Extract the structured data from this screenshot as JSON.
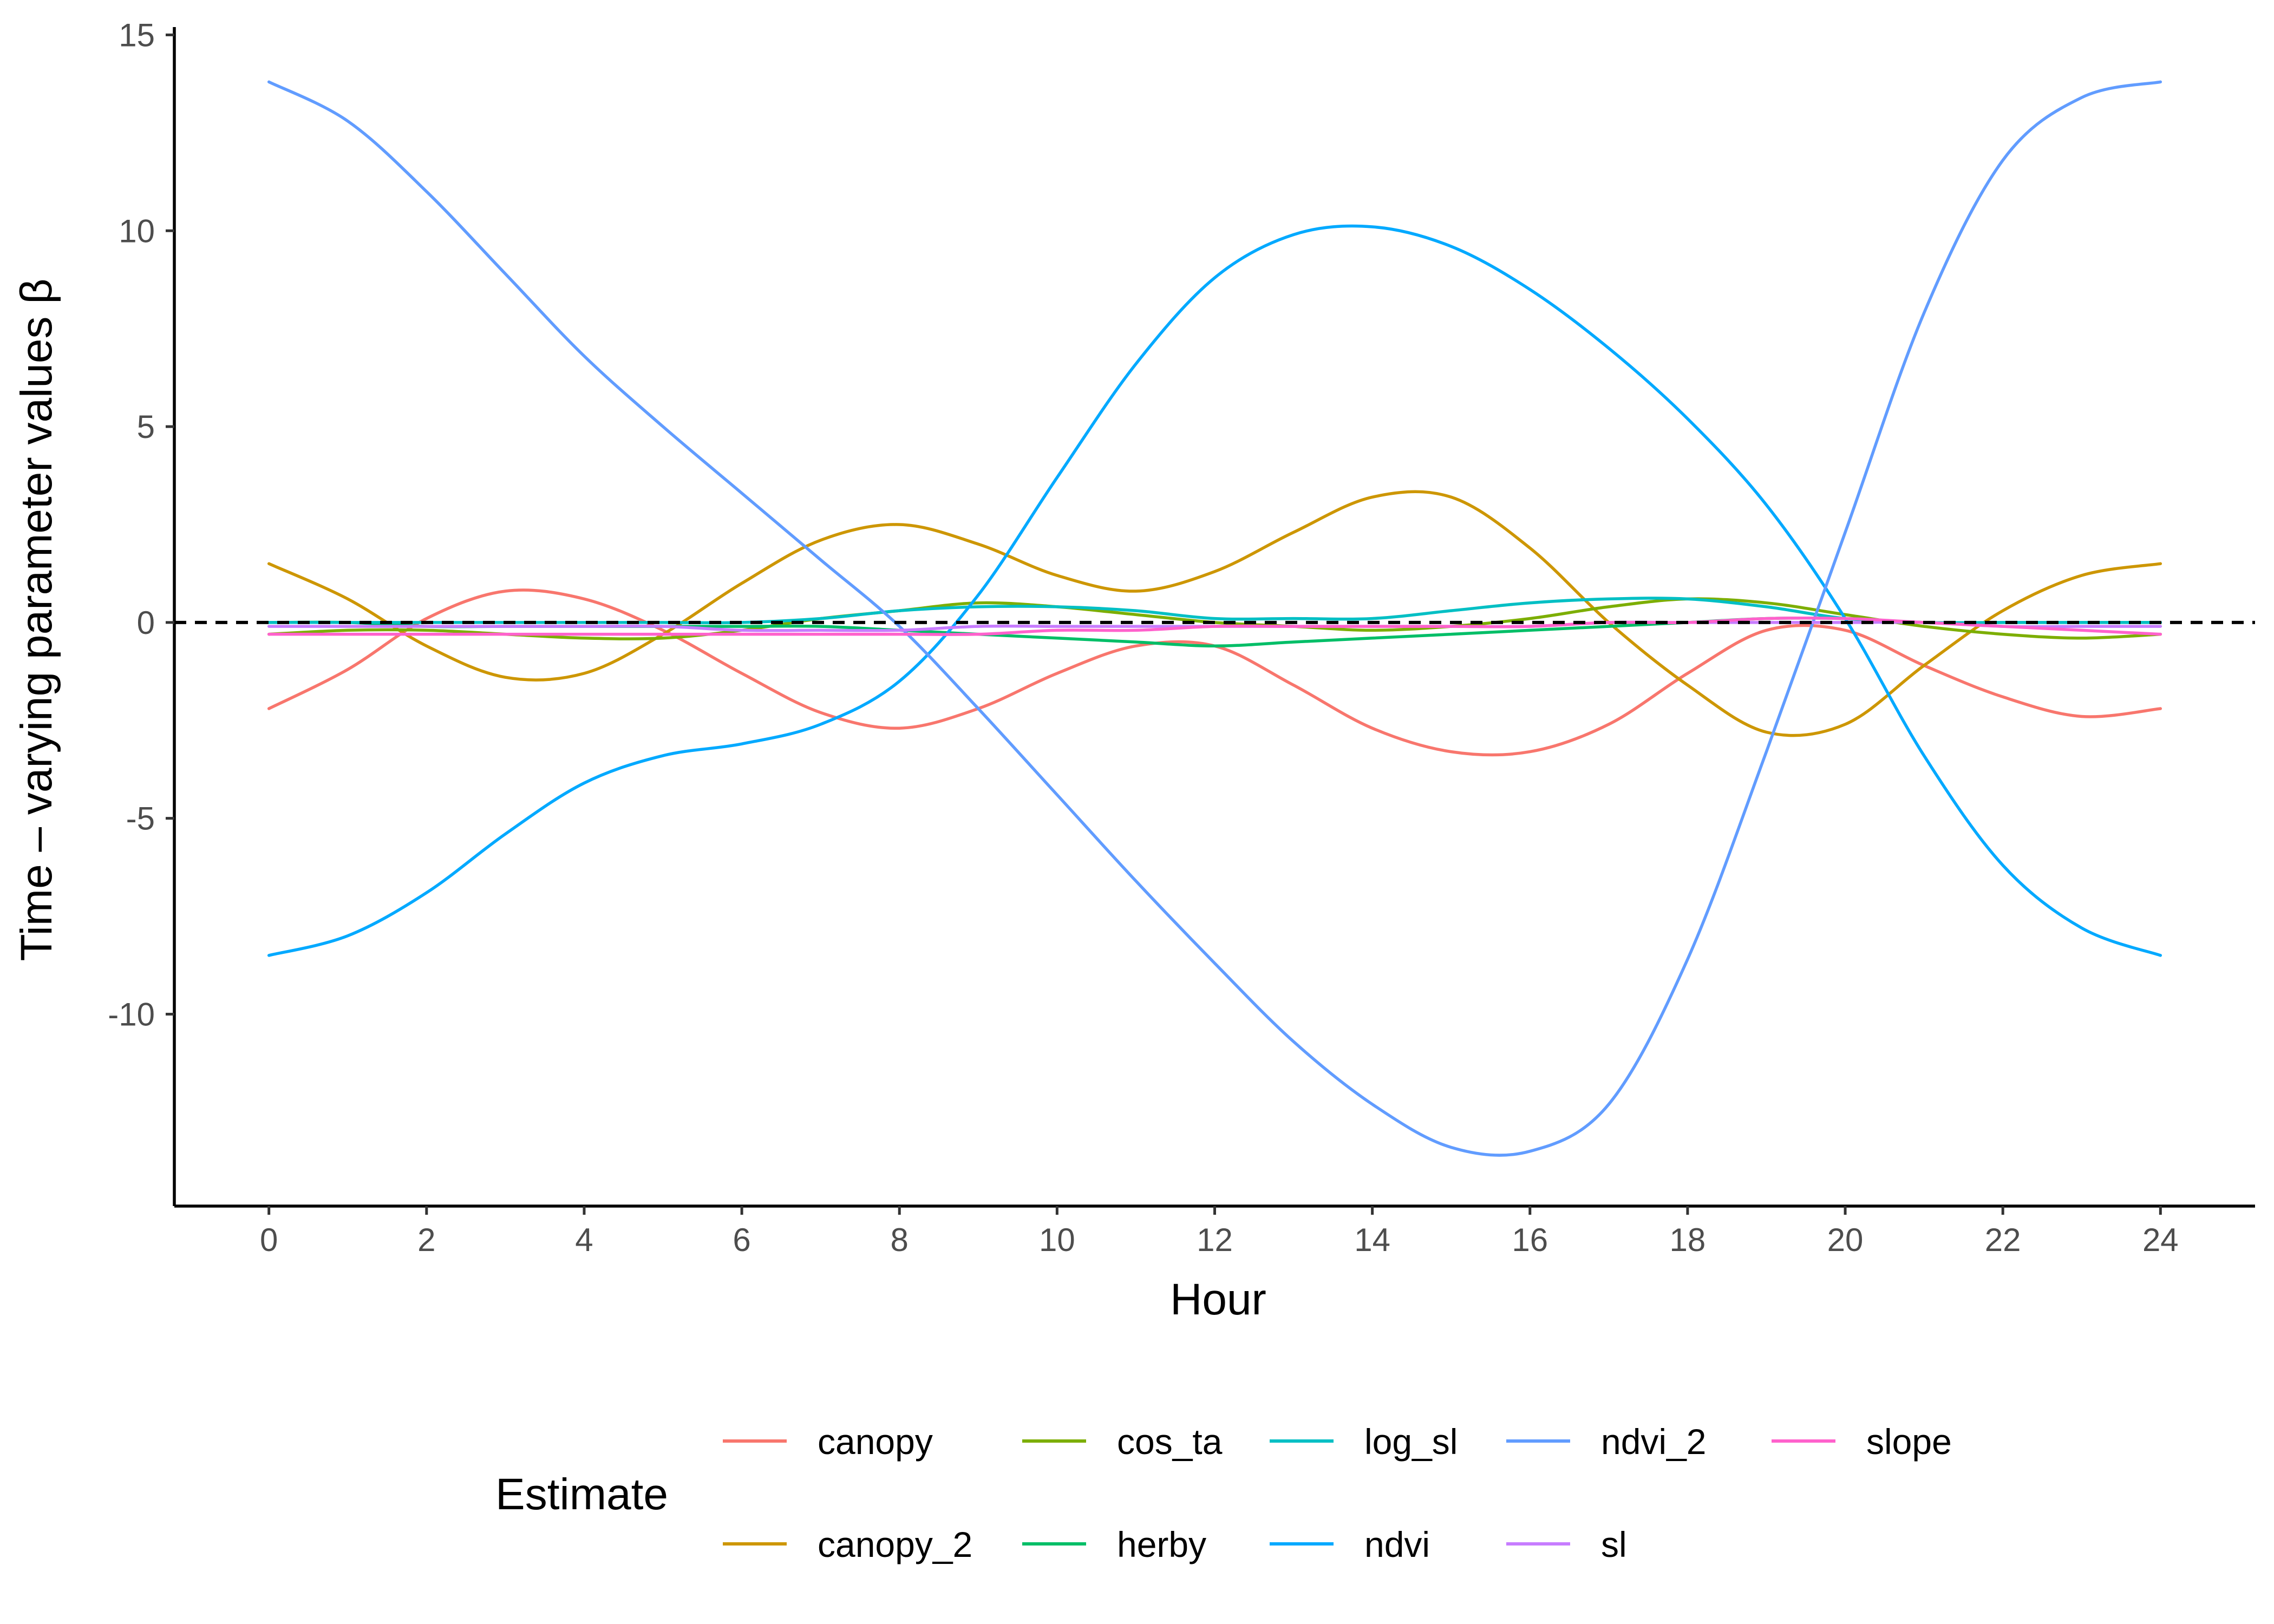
{
  "chart_data": {
    "type": "line",
    "xlabel": "Hour",
    "ylabel": "Time – varying parameter values β",
    "xlim": [
      -1.2,
      25.2
    ],
    "ylim": [
      -14.9,
      15.2
    ],
    "xticks": [
      "0",
      "2",
      "4",
      "6",
      "8",
      "10",
      "12",
      "14",
      "16",
      "18",
      "20",
      "22",
      "24"
    ],
    "yticks": [
      "15",
      "10",
      "5",
      "0",
      "-5",
      "-10"
    ],
    "xtick_values": [
      0,
      2,
      4,
      6,
      8,
      10,
      12,
      14,
      16,
      18,
      20,
      22,
      24
    ],
    "ytick_values": [
      15,
      10,
      5,
      0,
      -5,
      -10
    ],
    "reference_line": {
      "y": 0,
      "style": "dashed",
      "color": "#000000"
    },
    "grid": false,
    "legend": {
      "title": "Estimate",
      "position": "bottom"
    },
    "x": [
      0,
      1,
      2,
      3,
      4,
      5,
      6,
      7,
      8,
      9,
      10,
      11,
      12,
      13,
      14,
      15,
      16,
      17,
      18,
      19,
      20,
      21,
      22,
      23,
      24
    ],
    "series": [
      {
        "name": "canopy",
        "color": "#F8766D",
        "values": [
          -2.2,
          -1.2,
          0.1,
          0.8,
          0.6,
          -0.2,
          -1.3,
          -2.3,
          -2.7,
          -2.2,
          -1.3,
          -0.6,
          -0.6,
          -1.6,
          -2.7,
          -3.3,
          -3.3,
          -2.6,
          -1.3,
          -0.2,
          -0.2,
          -1.1,
          -1.9,
          -2.4,
          -2.2
        ]
      },
      {
        "name": "canopy_2",
        "color": "#CD9600",
        "values": [
          1.5,
          0.6,
          -0.6,
          -1.4,
          -1.3,
          -0.3,
          1.0,
          2.1,
          2.5,
          2.0,
          1.2,
          0.8,
          1.3,
          2.3,
          3.2,
          3.2,
          1.9,
          0.0,
          -1.6,
          -2.8,
          -2.6,
          -1.1,
          0.3,
          1.2,
          1.5
        ]
      },
      {
        "name": "cos_ta",
        "color": "#7CAE00",
        "values": [
          -0.3,
          -0.2,
          -0.2,
          -0.3,
          -0.4,
          -0.4,
          -0.2,
          0.1,
          0.3,
          0.5,
          0.4,
          0.2,
          0.0,
          -0.1,
          -0.2,
          -0.1,
          0.1,
          0.4,
          0.6,
          0.5,
          0.2,
          -0.1,
          -0.3,
          -0.4,
          -0.3
        ]
      },
      {
        "name": "herby",
        "color": "#00BE67",
        "values": [
          0.0,
          0.0,
          -0.1,
          -0.1,
          -0.1,
          -0.1,
          -0.1,
          -0.1,
          -0.2,
          -0.3,
          -0.4,
          -0.5,
          -0.6,
          -0.5,
          -0.4,
          -0.3,
          -0.2,
          -0.1,
          0.0,
          0.1,
          0.1,
          0.0,
          0.0,
          0.0,
          0.0
        ]
      },
      {
        "name": "log_sl",
        "color": "#00BFC4",
        "values": [
          0.0,
          0.0,
          0.0,
          0.0,
          0.0,
          0.0,
          0.0,
          0.1,
          0.3,
          0.4,
          0.4,
          0.3,
          0.1,
          0.1,
          0.1,
          0.3,
          0.5,
          0.6,
          0.6,
          0.4,
          0.1,
          0.0,
          0.0,
          0.0,
          0.0
        ]
      },
      {
        "name": "ndvi",
        "color": "#00A9FF",
        "values": [
          -8.5,
          -8.0,
          -6.9,
          -5.4,
          -4.1,
          -3.4,
          -3.1,
          -2.6,
          -1.5,
          0.7,
          3.7,
          6.6,
          8.8,
          9.9,
          10.1,
          9.6,
          8.5,
          7.0,
          5.2,
          3.0,
          0.1,
          -3.4,
          -6.2,
          -7.8,
          -8.5
        ]
      },
      {
        "name": "ndvi_2",
        "color": "#619CFF",
        "values": [
          13.8,
          12.8,
          11.0,
          8.9,
          6.8,
          5.0,
          3.3,
          1.6,
          -0.1,
          -2.2,
          -4.4,
          -6.6,
          -8.7,
          -10.7,
          -12.3,
          -13.4,
          -13.5,
          -12.3,
          -8.6,
          -3.3,
          2.3,
          7.9,
          11.8,
          13.4,
          13.8
        ]
      },
      {
        "name": "sl",
        "color": "#C77CFF",
        "values": [
          -0.1,
          -0.1,
          -0.1,
          -0.1,
          -0.1,
          -0.1,
          -0.2,
          -0.2,
          -0.2,
          -0.1,
          -0.1,
          -0.1,
          -0.1,
          -0.1,
          -0.1,
          -0.1,
          -0.1,
          0.0,
          0.0,
          0.0,
          0.0,
          0.0,
          -0.1,
          -0.1,
          -0.1
        ]
      },
      {
        "name": "slope",
        "color": "#FF61CC",
        "values": [
          -0.3,
          -0.3,
          -0.3,
          -0.3,
          -0.3,
          -0.3,
          -0.3,
          -0.3,
          -0.3,
          -0.3,
          -0.2,
          -0.2,
          -0.1,
          -0.1,
          -0.1,
          -0.1,
          -0.1,
          0.0,
          0.0,
          0.1,
          0.1,
          0.0,
          -0.1,
          -0.2,
          -0.3
        ]
      }
    ]
  }
}
